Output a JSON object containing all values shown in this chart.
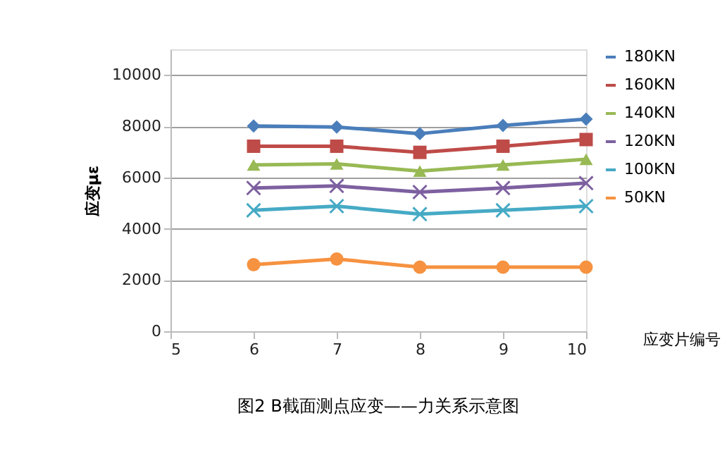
{
  "chart_data": {
    "type": "line",
    "title": "图2 B截面测点应变——力关系示意图",
    "xlabel": "应变片编号",
    "ylabel": "应变με",
    "x": [
      6,
      7,
      8,
      9,
      10
    ],
    "xlim": [
      5,
      10
    ],
    "xticks": [
      5,
      6,
      7,
      8,
      9,
      10
    ],
    "ylim": [
      0,
      11000
    ],
    "yticks": [
      0,
      2000,
      4000,
      6000,
      8000,
      10000
    ],
    "grid": "y",
    "legend": "right",
    "line_style": "solid",
    "series": [
      {
        "name": "180KN",
        "color": "#4a7ebb",
        "marker": "diamond",
        "values": [
          8010,
          7970,
          7710,
          8030,
          8280
        ]
      },
      {
        "name": "160KN",
        "color": "#be4b48",
        "marker": "square",
        "values": [
          7220,
          7220,
          6980,
          7220,
          7480
        ]
      },
      {
        "name": "140KN",
        "color": "#98b954",
        "marker": "triangle",
        "values": [
          6490,
          6530,
          6250,
          6490,
          6710
        ]
      },
      {
        "name": "120KN",
        "color": "#7d60a0",
        "marker": "cross",
        "values": [
          5590,
          5670,
          5430,
          5590,
          5780
        ]
      },
      {
        "name": "100KN",
        "color": "#46aac5",
        "marker": "cross",
        "values": [
          4720,
          4880,
          4570,
          4720,
          4880
        ]
      },
      {
        "name": "50KN",
        "color": "#f69240",
        "marker": "circle",
        "values": [
          2600,
          2820,
          2500,
          2500,
          2500
        ]
      }
    ]
  }
}
